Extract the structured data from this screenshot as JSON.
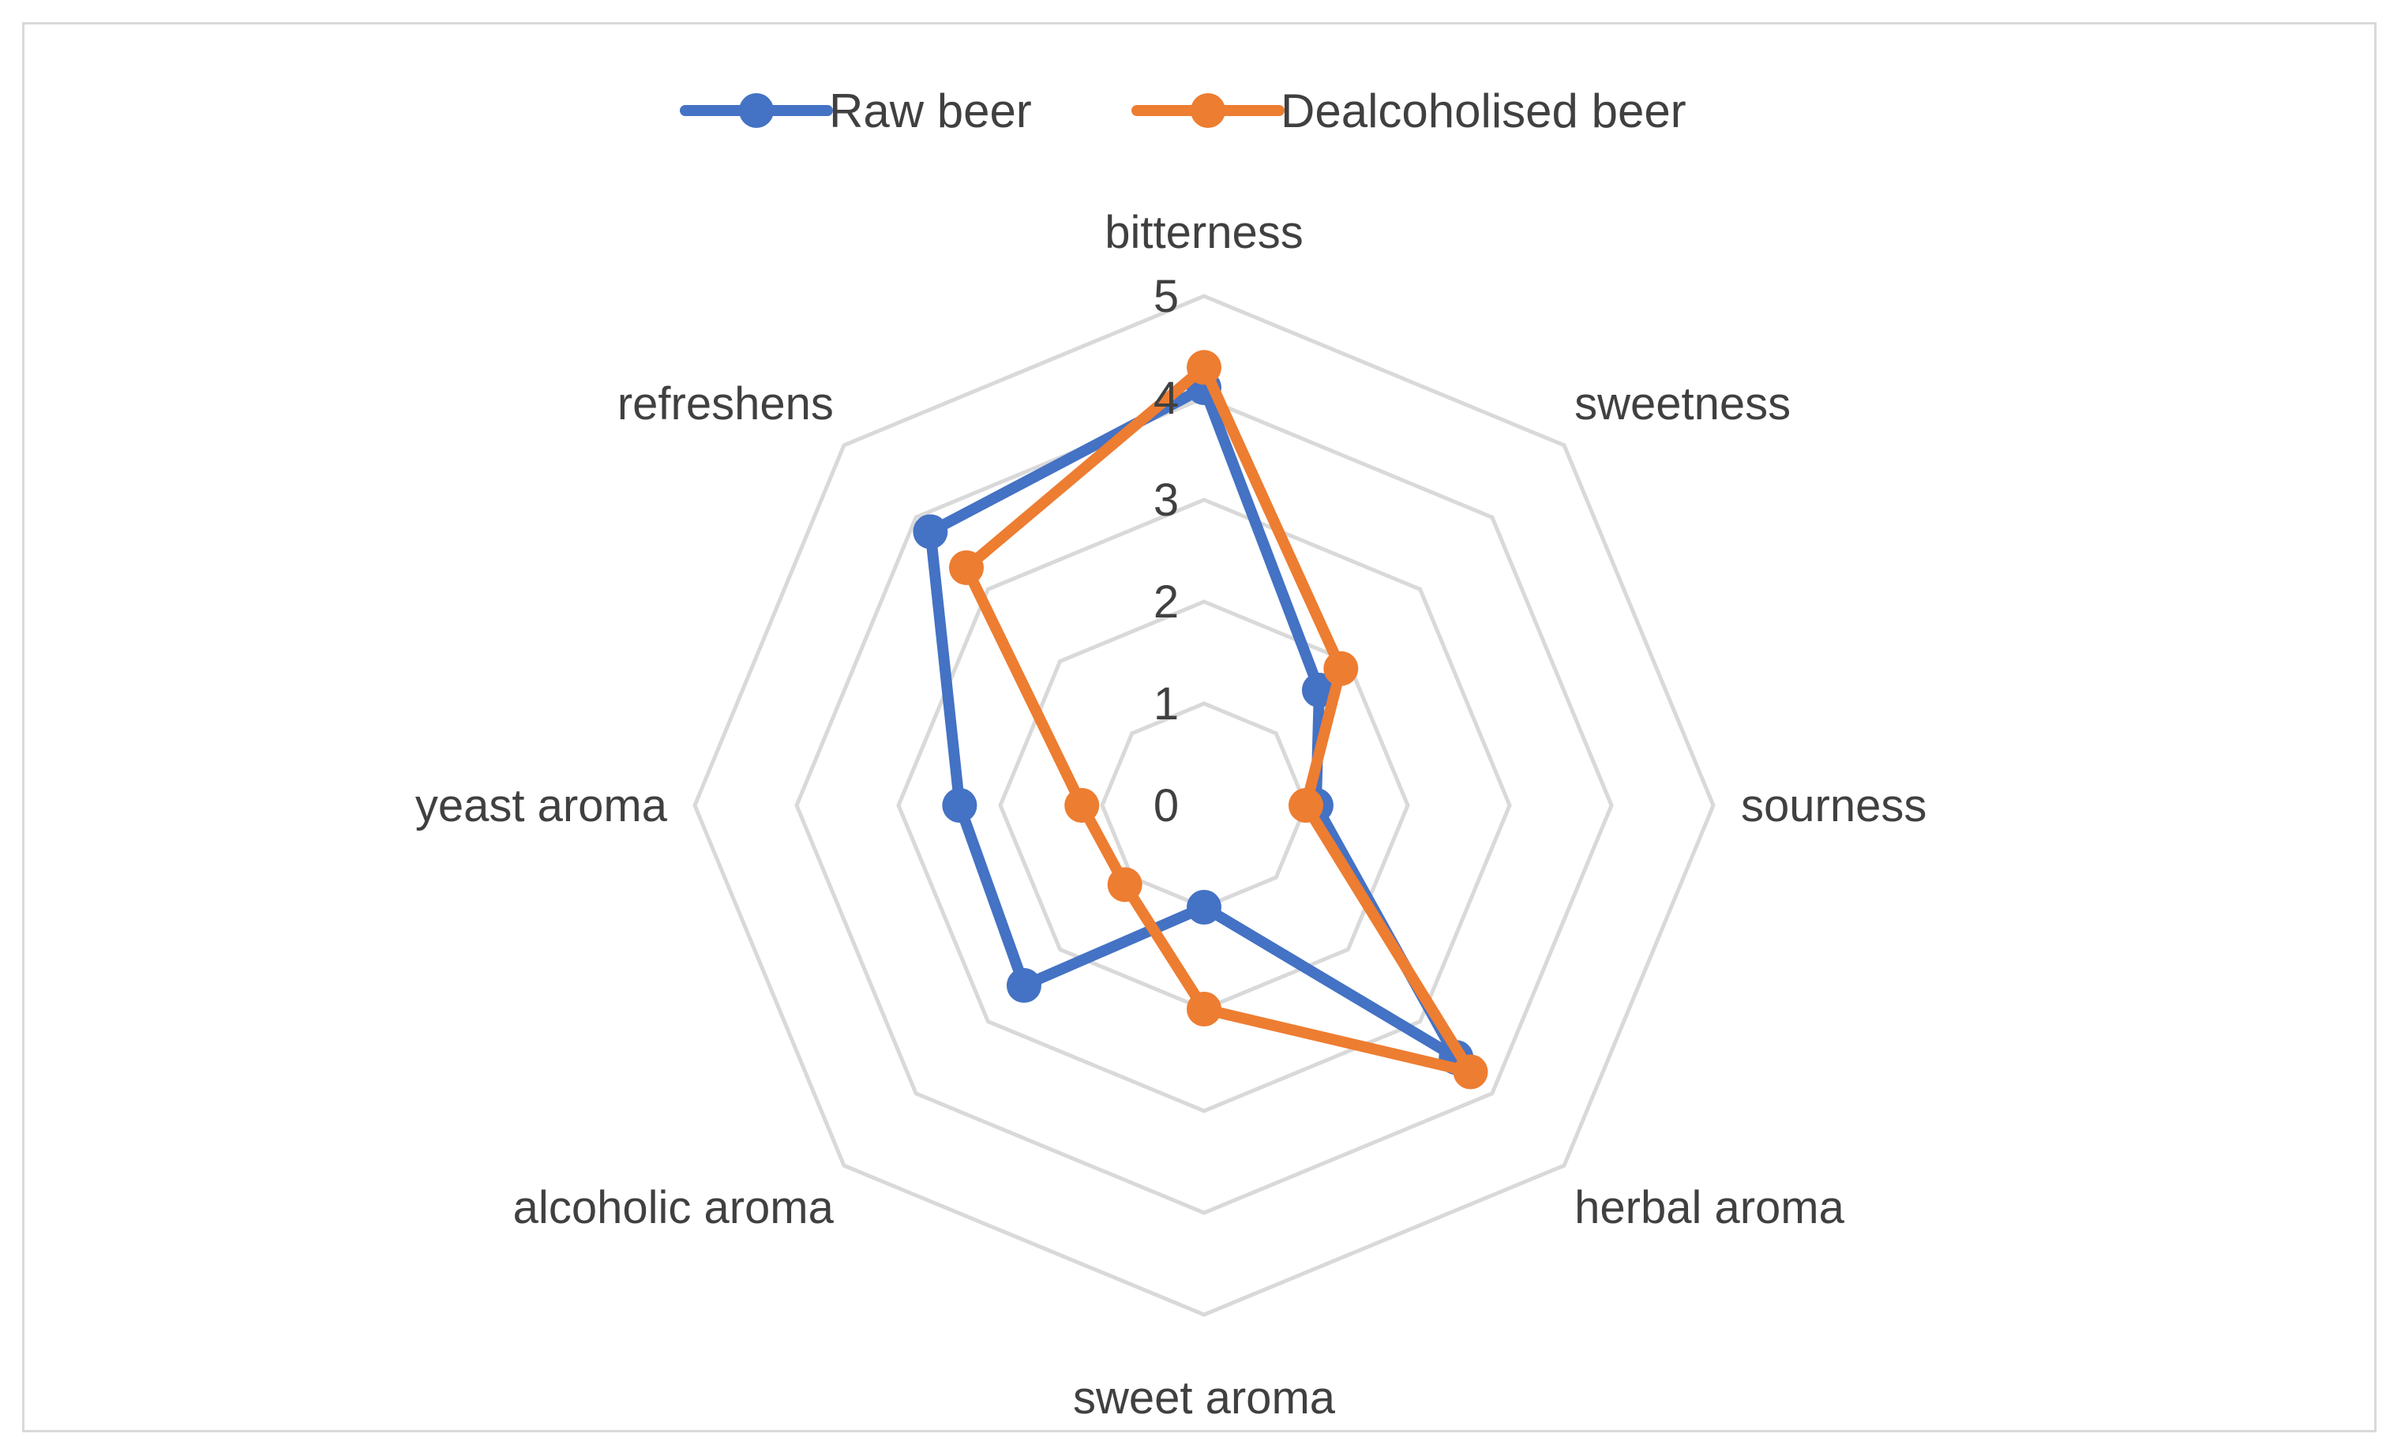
{
  "chart_data": {
    "type": "radar",
    "categories": [
      "bitterness",
      "sweetness",
      "sourness",
      "herbal aroma",
      "sweet aroma",
      "alcoholic aroma",
      "yeast aroma",
      "refreshens"
    ],
    "series": [
      {
        "name": "Raw beer",
        "color": "#4472c4",
        "values": [
          4.1,
          1.6,
          1.1,
          3.5,
          1.0,
          2.5,
          2.4,
          3.8
        ]
      },
      {
        "name": "Dealcoholised beer",
        "color": "#ed7d31",
        "values": [
          4.3,
          1.9,
          1.0,
          3.7,
          2.0,
          1.1,
          1.2,
          3.3
        ]
      }
    ],
    "r_ticks": [
      "0",
      "1",
      "2",
      "3",
      "4",
      "5"
    ],
    "rlim": [
      0,
      5
    ],
    "grid_color": "#d9d9d9",
    "legend_position": "top"
  }
}
